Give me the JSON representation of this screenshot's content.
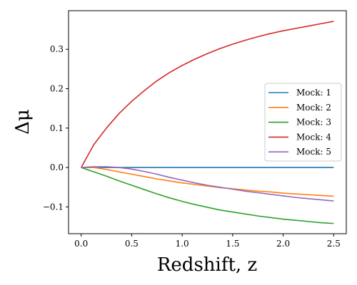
{
  "chart_data": {
    "type": "line",
    "xlabel": "Redshift, z",
    "ylabel": "Δμ",
    "xlim": [
      -0.125,
      2.625
    ],
    "ylim": [
      -0.168,
      0.398
    ],
    "xticks": [
      0.0,
      0.5,
      1.0,
      1.5,
      2.0,
      2.5
    ],
    "xtick_labels": [
      "0.0",
      "0.5",
      "1.0",
      "1.5",
      "2.0",
      "2.5"
    ],
    "yticks": [
      -0.1,
      0.0,
      0.1,
      0.2,
      0.3
    ],
    "ytick_labels": [
      "−0.1",
      "0.0",
      "0.1",
      "0.2",
      "0.3"
    ],
    "grid": false,
    "legend_position": "center-right",
    "x": [
      0.0,
      0.125,
      0.25,
      0.375,
      0.5,
      0.625,
      0.75,
      0.875,
      1.0,
      1.125,
      1.25,
      1.375,
      1.5,
      1.625,
      1.75,
      1.875,
      2.0,
      2.125,
      2.25,
      2.375,
      2.5
    ],
    "series": [
      {
        "name": "Mock: 1",
        "color": "#1f77b4",
        "values": [
          0.0,
          0.0,
          0.0,
          0.0,
          0.0,
          0.0,
          0.0,
          0.0,
          0.0,
          0.0,
          0.0,
          0.0,
          0.0,
          0.0,
          0.0,
          0.0,
          0.0,
          0.0,
          0.0,
          0.0,
          0.0
        ]
      },
      {
        "name": "Mock: 2",
        "color": "#ff7f0e",
        "values": [
          0.0,
          0.0,
          -0.005,
          -0.011,
          -0.017,
          -0.023,
          -0.029,
          -0.034,
          -0.039,
          -0.043,
          -0.047,
          -0.051,
          -0.054,
          -0.057,
          -0.06,
          -0.062,
          -0.065,
          -0.067,
          -0.069,
          -0.071,
          -0.073
        ]
      },
      {
        "name": "Mock: 3",
        "color": "#2ca02c",
        "values": [
          0.0,
          -0.011,
          -0.022,
          -0.034,
          -0.045,
          -0.056,
          -0.067,
          -0.077,
          -0.086,
          -0.094,
          -0.101,
          -0.108,
          -0.113,
          -0.118,
          -0.123,
          -0.127,
          -0.131,
          -0.134,
          -0.137,
          -0.14,
          -0.142
        ]
      },
      {
        "name": "Mock: 4",
        "color": "#d62728",
        "values": [
          0.0,
          0.058,
          0.1,
          0.137,
          0.168,
          0.195,
          0.22,
          0.241,
          0.259,
          0.275,
          0.289,
          0.302,
          0.313,
          0.323,
          0.332,
          0.34,
          0.347,
          0.353,
          0.359,
          0.365,
          0.371
        ]
      },
      {
        "name": "Mock: 5",
        "color": "#9467bd",
        "values": [
          0.0,
          0.002,
          0.002,
          0.0,
          -0.004,
          -0.01,
          -0.017,
          -0.025,
          -0.032,
          -0.039,
          -0.045,
          -0.05,
          -0.055,
          -0.06,
          -0.064,
          -0.068,
          -0.072,
          -0.076,
          -0.079,
          -0.082,
          -0.085
        ]
      }
    ]
  }
}
